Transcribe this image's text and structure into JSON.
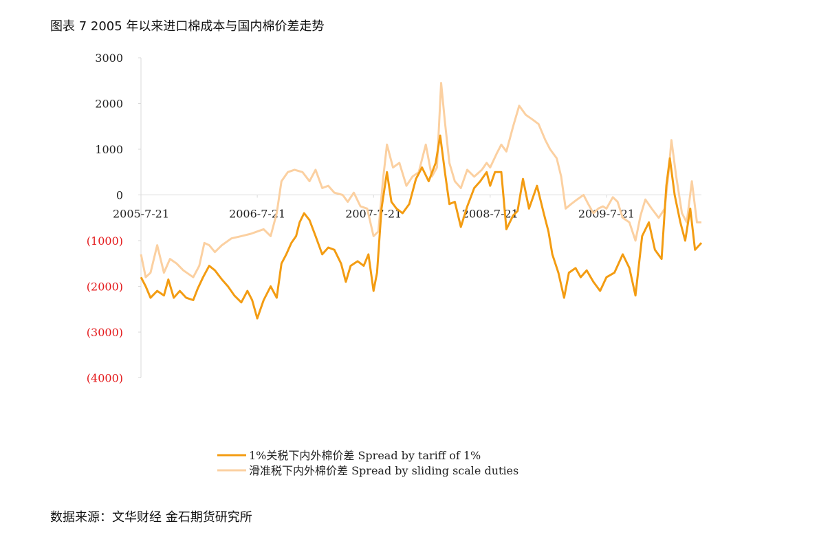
{
  "header": {
    "title": "图表 7 2005 年以来进口棉成本与国内棉价差走势"
  },
  "footer": {
    "source": "数据来源：文华财经 金石期货研究所"
  },
  "chart_data": {
    "type": "line",
    "title": "",
    "xlabel": "",
    "ylabel": "",
    "ylim": [
      -4000,
      3000
    ],
    "y_ticks": [
      {
        "value": 3000,
        "label": "3000",
        "negative": false
      },
      {
        "value": 2000,
        "label": "2000",
        "negative": false
      },
      {
        "value": 1000,
        "label": "1000",
        "negative": false
      },
      {
        "value": 0,
        "label": "0",
        "negative": false
      },
      {
        "value": -1000,
        "label": "(1000)",
        "negative": true
      },
      {
        "value": -2000,
        "label": "(2000)",
        "negative": true
      },
      {
        "value": -3000,
        "label": "(3000)",
        "negative": true
      },
      {
        "value": -4000,
        "label": "(4000)",
        "negative": true
      }
    ],
    "x_range": [
      "2005-07-21",
      "2010-05-15"
    ],
    "x_ticks": [
      "2005-7-21",
      "2006-7-21",
      "2007-7-21",
      "2008-7-21",
      "2009-7-21"
    ],
    "legend_position": "bottom",
    "negative_label_color": "#e41a1c",
    "series": [
      {
        "name": "1%关税下内外棉价差 Spread by tariff of 1%",
        "color": "#f39c12",
        "width": 3,
        "points": [
          [
            "2005-07-21",
            -1800
          ],
          [
            "2005-08-05",
            -2000
          ],
          [
            "2005-08-20",
            -2250
          ],
          [
            "2005-09-10",
            -2100
          ],
          [
            "2005-10-01",
            -2200
          ],
          [
            "2005-10-15",
            -1850
          ],
          [
            "2005-11-01",
            -2250
          ],
          [
            "2005-11-20",
            -2100
          ],
          [
            "2005-12-10",
            -2250
          ],
          [
            "2006-01-01",
            -2300
          ],
          [
            "2006-01-15",
            -2050
          ],
          [
            "2006-02-01",
            -1800
          ],
          [
            "2006-02-20",
            -1550
          ],
          [
            "2006-03-10",
            -1650
          ],
          [
            "2006-04-01",
            -1850
          ],
          [
            "2006-04-20",
            -2000
          ],
          [
            "2006-05-10",
            -2200
          ],
          [
            "2006-06-01",
            -2350
          ],
          [
            "2006-06-20",
            -2100
          ],
          [
            "2006-07-05",
            -2300
          ],
          [
            "2006-07-21",
            -2700
          ],
          [
            "2006-08-10",
            -2300
          ],
          [
            "2006-09-01",
            -2000
          ],
          [
            "2006-09-20",
            -2250
          ],
          [
            "2006-10-05",
            -1500
          ],
          [
            "2006-10-20",
            -1300
          ],
          [
            "2006-11-05",
            -1050
          ],
          [
            "2006-11-20",
            -900
          ],
          [
            "2006-12-01",
            -600
          ],
          [
            "2006-12-15",
            -400
          ],
          [
            "2007-01-01",
            -550
          ],
          [
            "2007-01-20",
            -900
          ],
          [
            "2007-02-10",
            -1300
          ],
          [
            "2007-03-01",
            -1150
          ],
          [
            "2007-03-20",
            -1200
          ],
          [
            "2007-04-10",
            -1500
          ],
          [
            "2007-04-25",
            -1900
          ],
          [
            "2007-05-10",
            -1550
          ],
          [
            "2007-06-01",
            -1450
          ],
          [
            "2007-06-20",
            -1550
          ],
          [
            "2007-07-05",
            -1300
          ],
          [
            "2007-07-21",
            -2100
          ],
          [
            "2007-08-01",
            -1700
          ],
          [
            "2007-08-15",
            -300
          ],
          [
            "2007-09-01",
            500
          ],
          [
            "2007-09-15",
            -150
          ],
          [
            "2007-10-01",
            -300
          ],
          [
            "2007-10-20",
            -400
          ],
          [
            "2007-11-10",
            -200
          ],
          [
            "2007-12-01",
            350
          ],
          [
            "2007-12-20",
            600
          ],
          [
            "2008-01-10",
            300
          ],
          [
            "2008-02-01",
            700
          ],
          [
            "2008-02-15",
            1300
          ],
          [
            "2008-03-01",
            500
          ],
          [
            "2008-03-15",
            -200
          ],
          [
            "2008-04-01",
            -150
          ],
          [
            "2008-04-20",
            -700
          ],
          [
            "2008-05-10",
            -250
          ],
          [
            "2008-06-01",
            150
          ],
          [
            "2008-06-20",
            300
          ],
          [
            "2008-07-10",
            500
          ],
          [
            "2008-07-21",
            200
          ],
          [
            "2008-08-05",
            500
          ],
          [
            "2008-08-25",
            500
          ],
          [
            "2008-09-10",
            -750
          ],
          [
            "2008-10-01",
            -450
          ],
          [
            "2008-10-15",
            -350
          ],
          [
            "2008-11-01",
            350
          ],
          [
            "2008-11-20",
            -300
          ],
          [
            "2008-12-15",
            200
          ],
          [
            "2009-01-05",
            -400
          ],
          [
            "2009-01-20",
            -800
          ],
          [
            "2009-02-01",
            -1300
          ],
          [
            "2009-02-20",
            -1700
          ],
          [
            "2009-03-10",
            -2250
          ],
          [
            "2009-03-25",
            -1700
          ],
          [
            "2009-04-15",
            -1600
          ],
          [
            "2009-05-01",
            -1800
          ],
          [
            "2009-05-20",
            -1650
          ],
          [
            "2009-06-10",
            -1900
          ],
          [
            "2009-07-01",
            -2100
          ],
          [
            "2009-07-21",
            -1800
          ],
          [
            "2009-08-15",
            -1700
          ],
          [
            "2009-09-10",
            -1300
          ],
          [
            "2009-10-01",
            -1600
          ],
          [
            "2009-10-20",
            -2200
          ],
          [
            "2009-11-10",
            -900
          ],
          [
            "2009-12-01",
            -600
          ],
          [
            "2009-12-20",
            -1200
          ],
          [
            "2010-01-10",
            -1400
          ],
          [
            "2010-01-25",
            200
          ],
          [
            "2010-02-05",
            800
          ],
          [
            "2010-02-20",
            0
          ],
          [
            "2010-03-10",
            -600
          ],
          [
            "2010-03-25",
            -1000
          ],
          [
            "2010-04-10",
            -300
          ],
          [
            "2010-04-25",
            -1200
          ],
          [
            "2010-05-15",
            -1050
          ]
        ]
      },
      {
        "name": "滑准税下内外棉价差 Spread by sliding scale duties",
        "color": "#fbd0a1",
        "width": 3,
        "points": [
          [
            "2005-07-21",
            -1300
          ],
          [
            "2005-08-05",
            -1800
          ],
          [
            "2005-08-20",
            -1700
          ],
          [
            "2005-09-10",
            -1100
          ],
          [
            "2005-10-01",
            -1700
          ],
          [
            "2005-10-20",
            -1400
          ],
          [
            "2005-11-10",
            -1500
          ],
          [
            "2005-12-01",
            -1650
          ],
          [
            "2006-01-01",
            -1800
          ],
          [
            "2006-01-20",
            -1550
          ],
          [
            "2006-02-05",
            -1050
          ],
          [
            "2006-02-20",
            -1100
          ],
          [
            "2006-03-10",
            -1250
          ],
          [
            "2006-04-01",
            -1100
          ],
          [
            "2006-05-01",
            -950
          ],
          [
            "2006-06-01",
            -900
          ],
          [
            "2006-07-01",
            -850
          ],
          [
            "2006-07-21",
            -800
          ],
          [
            "2006-08-10",
            -750
          ],
          [
            "2006-09-01",
            -900
          ],
          [
            "2006-09-20",
            -400
          ],
          [
            "2006-10-05",
            300
          ],
          [
            "2006-10-25",
            500
          ],
          [
            "2006-11-15",
            550
          ],
          [
            "2006-12-10",
            500
          ],
          [
            "2007-01-01",
            300
          ],
          [
            "2007-01-20",
            550
          ],
          [
            "2007-02-10",
            150
          ],
          [
            "2007-03-01",
            200
          ],
          [
            "2007-03-20",
            50
          ],
          [
            "2007-04-15",
            0
          ],
          [
            "2007-05-01",
            -150
          ],
          [
            "2007-05-20",
            50
          ],
          [
            "2007-06-10",
            -250
          ],
          [
            "2007-07-01",
            -300
          ],
          [
            "2007-07-21",
            -900
          ],
          [
            "2007-08-05",
            -800
          ],
          [
            "2007-08-20",
            350
          ],
          [
            "2007-09-01",
            1100
          ],
          [
            "2007-09-20",
            600
          ],
          [
            "2007-10-10",
            700
          ],
          [
            "2007-11-01",
            200
          ],
          [
            "2007-11-20",
            400
          ],
          [
            "2007-12-10",
            500
          ],
          [
            "2008-01-01",
            1100
          ],
          [
            "2008-01-20",
            400
          ],
          [
            "2008-02-05",
            600
          ],
          [
            "2008-02-18",
            2450
          ],
          [
            "2008-03-01",
            1600
          ],
          [
            "2008-03-15",
            700
          ],
          [
            "2008-04-01",
            300
          ],
          [
            "2008-04-20",
            150
          ],
          [
            "2008-05-10",
            550
          ],
          [
            "2008-06-01",
            400
          ],
          [
            "2008-06-25",
            550
          ],
          [
            "2008-07-10",
            700
          ],
          [
            "2008-07-21",
            600
          ],
          [
            "2008-08-10",
            900
          ],
          [
            "2008-08-25",
            1100
          ],
          [
            "2008-09-10",
            950
          ],
          [
            "2008-10-01",
            1500
          ],
          [
            "2008-10-20",
            1950
          ],
          [
            "2008-11-10",
            1750
          ],
          [
            "2008-12-01",
            1650
          ],
          [
            "2008-12-20",
            1550
          ],
          [
            "2009-01-10",
            1200
          ],
          [
            "2009-01-25",
            1000
          ],
          [
            "2009-02-15",
            800
          ],
          [
            "2009-03-01",
            400
          ],
          [
            "2009-03-15",
            -300
          ],
          [
            "2009-04-01",
            -200
          ],
          [
            "2009-04-20",
            -100
          ],
          [
            "2009-05-10",
            0
          ],
          [
            "2009-05-25",
            -200
          ],
          [
            "2009-06-10",
            -400
          ],
          [
            "2009-06-25",
            -300
          ],
          [
            "2009-07-10",
            -250
          ],
          [
            "2009-07-21",
            -300
          ],
          [
            "2009-08-10",
            -50
          ],
          [
            "2009-08-25",
            -150
          ],
          [
            "2009-09-10",
            -500
          ],
          [
            "2009-10-01",
            -600
          ],
          [
            "2009-10-20",
            -1000
          ],
          [
            "2009-11-05",
            -450
          ],
          [
            "2009-11-20",
            -100
          ],
          [
            "2009-12-10",
            -300
          ],
          [
            "2010-01-01",
            -500
          ],
          [
            "2010-01-20",
            -300
          ],
          [
            "2010-02-01",
            500
          ],
          [
            "2010-02-10",
            1200
          ],
          [
            "2010-02-25",
            400
          ],
          [
            "2010-03-15",
            -400
          ],
          [
            "2010-03-30",
            -600
          ],
          [
            "2010-04-15",
            300
          ],
          [
            "2010-05-01",
            -600
          ],
          [
            "2010-05-15",
            -600
          ]
        ]
      }
    ]
  }
}
